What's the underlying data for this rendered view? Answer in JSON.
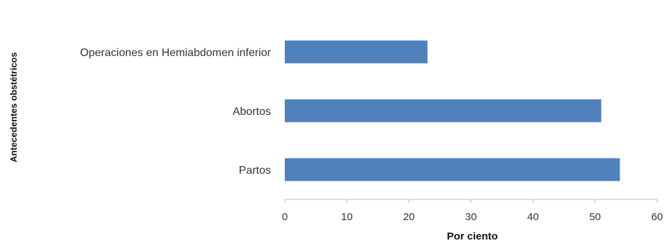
{
  "chart_data": {
    "type": "bar",
    "orientation": "horizontal",
    "categories": [
      "Operaciones en Hemiabdomen inferior",
      "Abortos",
      "Partos"
    ],
    "values": [
      23,
      51,
      54
    ],
    "xlabel": "Por ciento",
    "ylabel": "Antecedentes obstétricos",
    "xlim": [
      0,
      60
    ],
    "xticks": [
      "0",
      "10",
      "20",
      "30",
      "40",
      "50",
      "60"
    ],
    "grid": false,
    "legend": "none",
    "bar_color": "#4f81bd",
    "axis_color": "#bfbfbf"
  }
}
